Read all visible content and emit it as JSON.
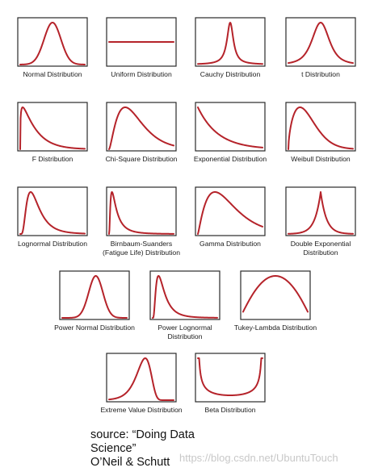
{
  "colors": {
    "curve": "#b5232a",
    "frame": "#2a2a2a",
    "background": "#ffffff"
  },
  "distributions": [
    {
      "id": "normal",
      "label": [
        "Normal Distribution"
      ],
      "shape": "normal"
    },
    {
      "id": "uniform",
      "label": [
        "Uniform Distribution"
      ],
      "shape": "uniform"
    },
    {
      "id": "cauchy",
      "label": [
        "Cauchy Distribution"
      ],
      "shape": "cauchy"
    },
    {
      "id": "t",
      "label": [
        "t Distribution"
      ],
      "shape": "t"
    },
    {
      "id": "f",
      "label": [
        "F Distribution"
      ],
      "shape": "f"
    },
    {
      "id": "chi-square",
      "label": [
        "Chi-Square Distribution"
      ],
      "shape": "chi-square"
    },
    {
      "id": "exponential",
      "label": [
        "Exponential Distribution"
      ],
      "shape": "exponential"
    },
    {
      "id": "weibull",
      "label": [
        "Weibull Distribution"
      ],
      "shape": "weibull"
    },
    {
      "id": "lognormal",
      "label": [
        "Lognormal Distribution"
      ],
      "shape": "lognormal"
    },
    {
      "id": "birnbaum-saunders",
      "label": [
        "Birnbaum-Suanders",
        "(Fatigue Life) Distribution"
      ],
      "shape": "birnbaum-saunders"
    },
    {
      "id": "gamma",
      "label": [
        "Gamma Distribution"
      ],
      "shape": "gamma"
    },
    {
      "id": "double-exponential",
      "label": [
        "Double Exponential",
        "Distribution"
      ],
      "shape": "double-exponential"
    },
    {
      "id": "power-normal",
      "label": [
        "Power Normal Distribution"
      ],
      "shape": "power-normal"
    },
    {
      "id": "power-lognormal",
      "label": [
        "Power Lognormal",
        "Distribution"
      ],
      "shape": "power-lognormal"
    },
    {
      "id": "tukey-lambda",
      "label": [
        "Tukey-Lambda Distribution"
      ],
      "shape": "tukey-lambda"
    },
    {
      "id": "extreme-value",
      "label": [
        "Extreme Value Distribution"
      ],
      "shape": "extreme-value"
    },
    {
      "id": "beta",
      "label": [
        "Beta Distribution"
      ],
      "shape": "beta"
    }
  ],
  "source": {
    "line1": "source: “Doing Data",
    "line2": "Science”",
    "line3": "O’Neil & Schutt"
  },
  "watermark": "https://blog.csdn.net/UbuntuTouch"
}
